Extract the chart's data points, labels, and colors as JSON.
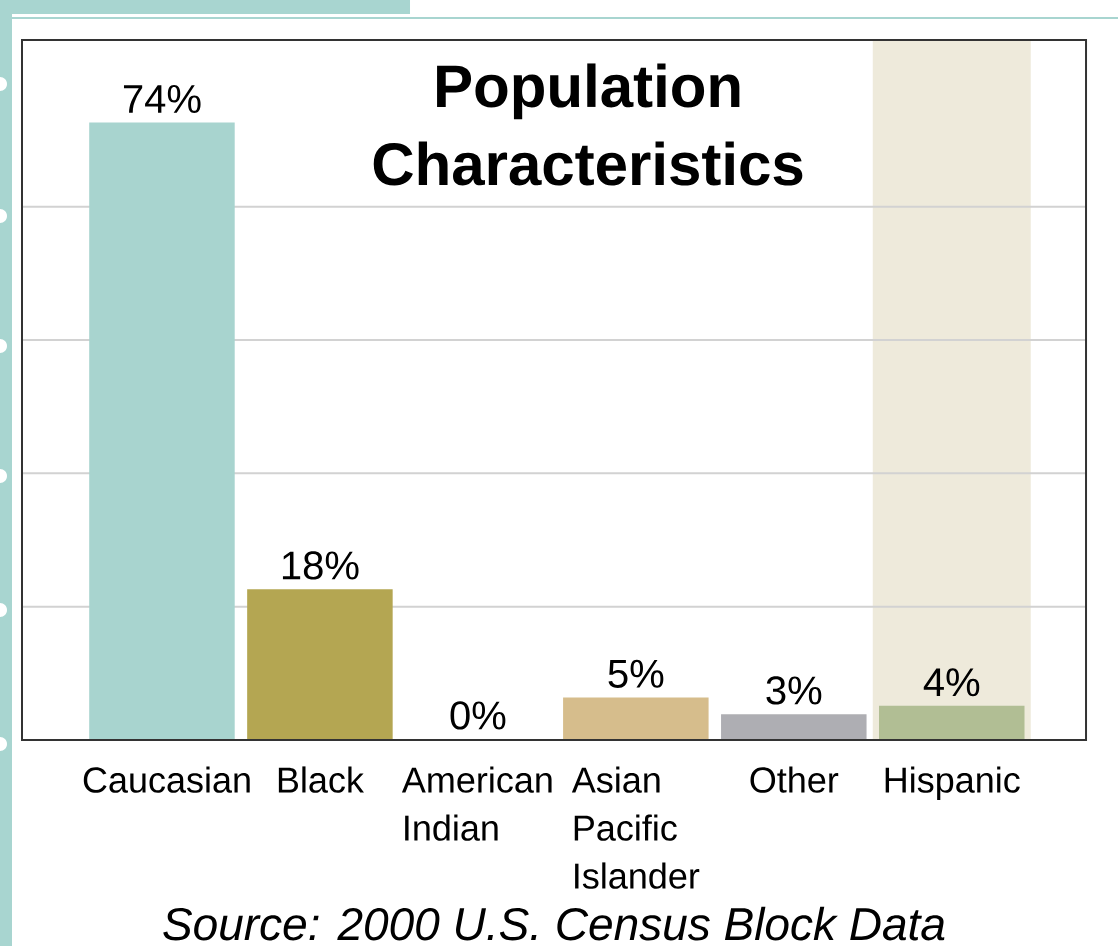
{
  "chart_data": {
    "type": "bar",
    "title": "Population Characteristics",
    "categories": [
      "Caucasian",
      "Black",
      "American Indian",
      "Asian Pacific Islander",
      "Other",
      "Hispanic"
    ],
    "values": [
      74,
      18,
      0,
      5,
      3,
      4
    ],
    "colors": [
      "#a8d4cf",
      "#b4a652",
      "#cc6a50",
      "#d6bd8c",
      "#aeaeb3",
      "#b1be94"
    ],
    "value_labels": [
      "74%",
      "18%",
      "0%",
      "5%",
      "3%",
      "4%"
    ],
    "ylim": [
      0,
      84
    ],
    "yticks": [
      {
        "value": 16,
        "label": null
      },
      {
        "value": 32,
        "label": null
      },
      {
        "value": 48,
        "label": null
      },
      {
        "value": 64,
        "label": null
      }
    ],
    "grid": "y",
    "tick_labels": "x",
    "bands": [
      {
        "axis": "x",
        "from": "Hispanic",
        "to": "Hispanic",
        "color": "#eeeadb"
      }
    ],
    "annotations": [
      "Source: 2000 U.S. Census Block Data"
    ]
  }
}
